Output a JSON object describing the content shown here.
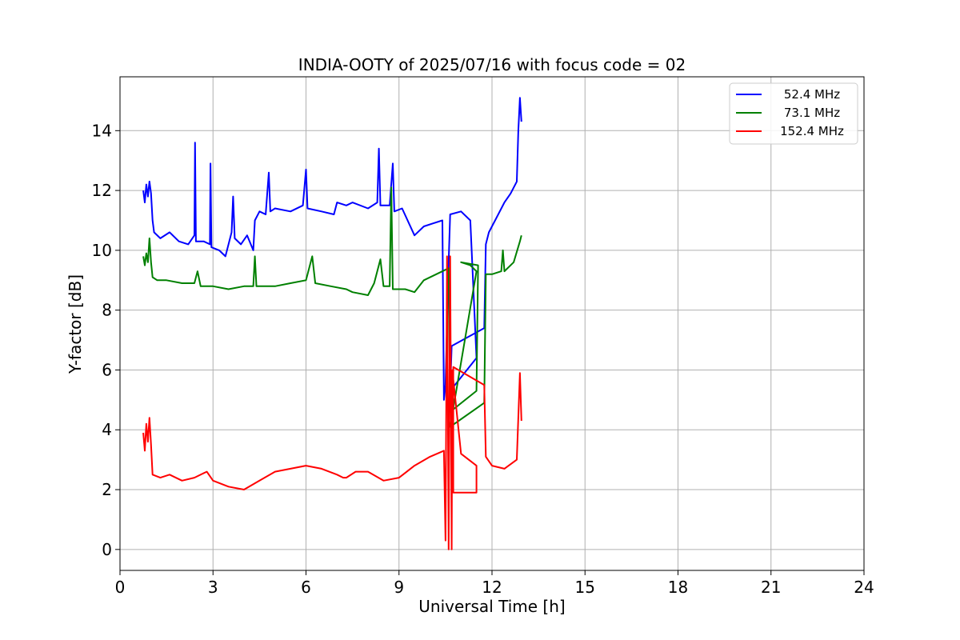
{
  "chart_data": {
    "type": "line",
    "title": "INDIA-OOTY of 2025/07/16 with focus code = 02",
    "xlabel": "Universal Time [h]",
    "ylabel": "Y-factor [dB]",
    "xlim": [
      0,
      24
    ],
    "ylim": [
      -0.7,
      15.8
    ],
    "xticks": [
      0,
      3,
      6,
      9,
      12,
      15,
      18,
      21,
      24
    ],
    "yticks": [
      0,
      2,
      4,
      6,
      8,
      10,
      12,
      14
    ],
    "grid": true,
    "legend_position": "top-right",
    "series": [
      {
        "name": " 52.4 MHz",
        "color": "#0000ff",
        "points": [
          [
            0.75,
            12.0
          ],
          [
            0.8,
            11.6
          ],
          [
            0.85,
            12.2
          ],
          [
            0.9,
            11.8
          ],
          [
            0.95,
            12.3
          ],
          [
            1.0,
            11.9
          ],
          [
            1.05,
            11.0
          ],
          [
            1.1,
            10.6
          ],
          [
            1.3,
            10.4
          ],
          [
            1.6,
            10.6
          ],
          [
            1.9,
            10.3
          ],
          [
            2.2,
            10.2
          ],
          [
            2.4,
            10.5
          ],
          [
            2.42,
            13.6
          ],
          [
            2.45,
            10.3
          ],
          [
            2.7,
            10.3
          ],
          [
            2.9,
            10.2
          ],
          [
            2.92,
            12.9
          ],
          [
            2.95,
            10.1
          ],
          [
            3.2,
            10.0
          ],
          [
            3.4,
            9.8
          ],
          [
            3.6,
            10.6
          ],
          [
            3.65,
            11.8
          ],
          [
            3.7,
            10.4
          ],
          [
            3.9,
            10.2
          ],
          [
            4.1,
            10.5
          ],
          [
            4.3,
            10.0
          ],
          [
            4.35,
            11.0
          ],
          [
            4.5,
            11.3
          ],
          [
            4.7,
            11.2
          ],
          [
            4.8,
            12.6
          ],
          [
            4.85,
            11.3
          ],
          [
            5.0,
            11.4
          ],
          [
            5.5,
            11.3
          ],
          [
            5.9,
            11.5
          ],
          [
            6.0,
            12.7
          ],
          [
            6.05,
            11.4
          ],
          [
            6.5,
            11.3
          ],
          [
            6.9,
            11.2
          ],
          [
            7.0,
            11.6
          ],
          [
            7.3,
            11.5
          ],
          [
            7.5,
            11.6
          ],
          [
            8.0,
            11.4
          ],
          [
            8.3,
            11.6
          ],
          [
            8.35,
            13.4
          ],
          [
            8.4,
            11.5
          ],
          [
            8.7,
            11.5
          ],
          [
            8.8,
            12.9
          ],
          [
            8.85,
            11.3
          ],
          [
            9.1,
            11.4
          ],
          [
            9.5,
            10.5
          ],
          [
            9.8,
            10.8
          ],
          [
            10.1,
            10.9
          ],
          [
            10.4,
            11.0
          ],
          [
            10.45,
            5.0
          ],
          [
            10.5,
            5.5
          ],
          [
            10.6,
            9.6
          ],
          [
            10.65,
            11.2
          ],
          [
            11.0,
            11.3
          ],
          [
            11.3,
            11.0
          ],
          [
            11.5,
            6.4
          ],
          [
            10.65,
            5.3
          ],
          [
            10.7,
            6.8
          ],
          [
            11.75,
            7.4
          ],
          [
            11.8,
            10.2
          ],
          [
            11.9,
            10.6
          ],
          [
            12.1,
            11.0
          ],
          [
            12.4,
            11.6
          ],
          [
            12.6,
            11.9
          ],
          [
            12.8,
            12.3
          ],
          [
            12.85,
            14.0
          ],
          [
            12.9,
            15.1
          ],
          [
            12.95,
            14.3
          ]
        ]
      },
      {
        "name": " 73.1 MHz",
        "color": "#008000",
        "points": [
          [
            0.75,
            9.8
          ],
          [
            0.8,
            9.5
          ],
          [
            0.85,
            9.9
          ],
          [
            0.9,
            9.6
          ],
          [
            0.95,
            10.4
          ],
          [
            1.0,
            9.6
          ],
          [
            1.05,
            9.1
          ],
          [
            1.2,
            9.0
          ],
          [
            1.5,
            9.0
          ],
          [
            2.0,
            8.9
          ],
          [
            2.4,
            8.9
          ],
          [
            2.5,
            9.3
          ],
          [
            2.6,
            8.8
          ],
          [
            3.0,
            8.8
          ],
          [
            3.5,
            8.7
          ],
          [
            4.0,
            8.8
          ],
          [
            4.3,
            8.8
          ],
          [
            4.35,
            9.8
          ],
          [
            4.4,
            8.8
          ],
          [
            5.0,
            8.8
          ],
          [
            5.5,
            8.9
          ],
          [
            6.0,
            9.0
          ],
          [
            6.2,
            9.8
          ],
          [
            6.3,
            8.9
          ],
          [
            6.8,
            8.8
          ],
          [
            7.3,
            8.7
          ],
          [
            7.5,
            8.6
          ],
          [
            8.0,
            8.5
          ],
          [
            8.2,
            8.9
          ],
          [
            8.4,
            9.7
          ],
          [
            8.5,
            8.8
          ],
          [
            8.7,
            8.8
          ],
          [
            8.75,
            12.1
          ],
          [
            8.8,
            8.7
          ],
          [
            9.2,
            8.7
          ],
          [
            9.5,
            8.6
          ],
          [
            9.8,
            9.0
          ],
          [
            10.2,
            9.2
          ],
          [
            10.6,
            9.4
          ],
          [
            10.65,
            4.6
          ],
          [
            11.5,
            5.3
          ],
          [
            11.55,
            9.5
          ],
          [
            11.0,
            9.6
          ],
          [
            11.3,
            9.5
          ],
          [
            11.5,
            9.3
          ],
          [
            10.65,
            4.1
          ],
          [
            11.75,
            4.9
          ],
          [
            11.8,
            9.2
          ],
          [
            12.0,
            9.2
          ],
          [
            12.3,
            9.3
          ],
          [
            12.35,
            10.0
          ],
          [
            12.4,
            9.3
          ],
          [
            12.7,
            9.6
          ],
          [
            12.9,
            10.3
          ],
          [
            12.95,
            10.5
          ]
        ]
      },
      {
        "name": "152.4 MHz",
        "color": "#ff0000",
        "points": [
          [
            0.75,
            3.9
          ],
          [
            0.8,
            3.3
          ],
          [
            0.85,
            4.2
          ],
          [
            0.9,
            3.6
          ],
          [
            0.95,
            4.4
          ],
          [
            1.0,
            3.5
          ],
          [
            1.05,
            2.5
          ],
          [
            1.3,
            2.4
          ],
          [
            1.6,
            2.5
          ],
          [
            2.0,
            2.3
          ],
          [
            2.4,
            2.4
          ],
          [
            2.8,
            2.6
          ],
          [
            3.0,
            2.3
          ],
          [
            3.5,
            2.1
          ],
          [
            4.0,
            2.0
          ],
          [
            4.5,
            2.3
          ],
          [
            5.0,
            2.6
          ],
          [
            5.5,
            2.7
          ],
          [
            6.0,
            2.8
          ],
          [
            6.5,
            2.7
          ],
          [
            7.0,
            2.5
          ],
          [
            7.2,
            2.4
          ],
          [
            7.3,
            2.4
          ],
          [
            7.6,
            2.6
          ],
          [
            8.0,
            2.6
          ],
          [
            8.5,
            2.3
          ],
          [
            9.0,
            2.4
          ],
          [
            9.5,
            2.8
          ],
          [
            10.0,
            3.1
          ],
          [
            10.45,
            3.3
          ],
          [
            10.5,
            0.3
          ],
          [
            10.55,
            9.8
          ],
          [
            10.6,
            0.0
          ],
          [
            10.65,
            9.8
          ],
          [
            10.7,
            0.0
          ],
          [
            10.72,
            6.0
          ],
          [
            11.0,
            3.2
          ],
          [
            11.5,
            2.8
          ],
          [
            11.5,
            1.9
          ],
          [
            10.75,
            1.9
          ],
          [
            10.75,
            6.1
          ],
          [
            11.75,
            5.5
          ],
          [
            11.8,
            3.1
          ],
          [
            12.0,
            2.8
          ],
          [
            12.4,
            2.7
          ],
          [
            12.8,
            3.0
          ],
          [
            12.9,
            5.9
          ],
          [
            12.95,
            4.3
          ]
        ]
      }
    ]
  }
}
